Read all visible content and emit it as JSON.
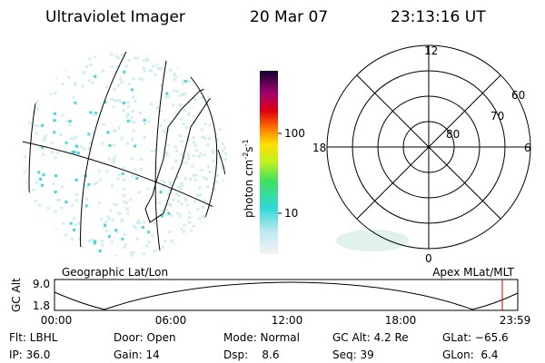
{
  "header": {
    "title": "Ultraviolet Imager",
    "date": "20 Mar 07",
    "time": "23:13:16 UT"
  },
  "colorbar": {
    "unit": [
      "photon cm",
      "-2",
      "s",
      "-1"
    ],
    "labels": [
      "100",
      "10"
    ]
  },
  "polar": {
    "labels": [
      "12",
      "60",
      "70",
      "80",
      "18",
      "6",
      "0"
    ]
  },
  "panels": {
    "left": "Geographic Lat/Lon",
    "right": "Apex MLat/MLT"
  },
  "orbit": {
    "axis_label": "GC Alt",
    "y_labels": [
      "9.0",
      "1.8"
    ],
    "x_labels": [
      "00:00",
      "06:00",
      "12:00",
      "18:00",
      "23:59"
    ]
  },
  "info": [
    [
      "Flt: LBHL",
      "Door: Open",
      "Mode: Normal",
      "GC Alt: 4.2 Re",
      "GLat: −65.6"
    ],
    [
      "IP: 36.0",
      "Gain: 14",
      "Dsp:    8.6",
      "Seq: 39",
      "GLon:  6.4"
    ]
  ]
}
